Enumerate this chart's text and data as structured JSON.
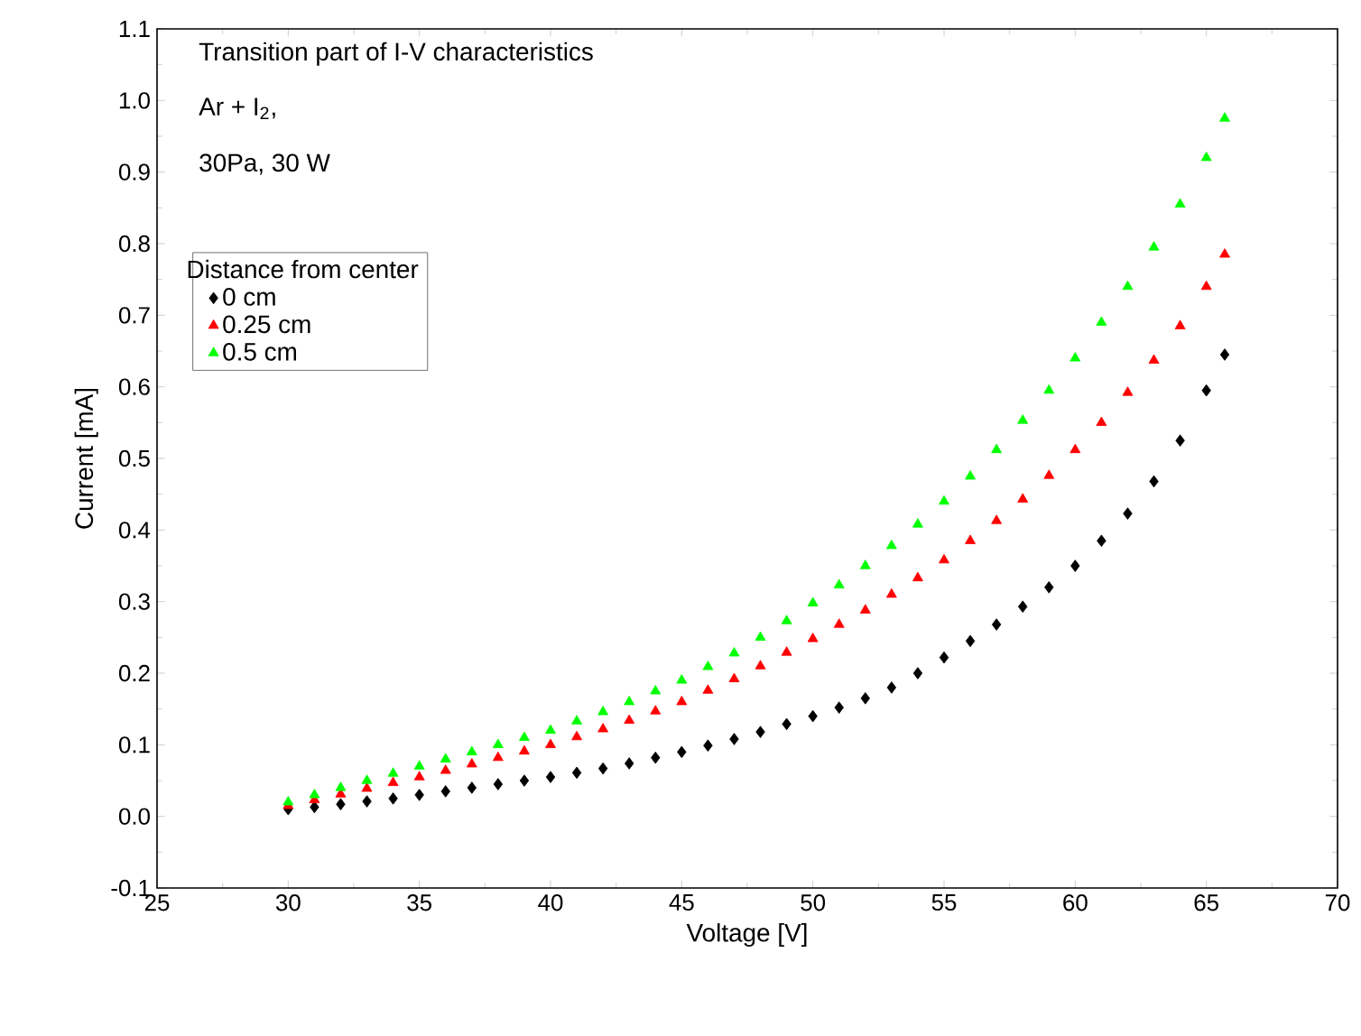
{
  "chart_data": {
    "type": "scatter",
    "xlabel": "Voltage [V]",
    "ylabel": "Current [mA]",
    "legend_title": "Distance from center",
    "annotations": [
      "Transition part of I-V characteristics",
      "Ar + I$_{2}$,",
      "30Pa, 30 W"
    ],
    "xlim": [
      25,
      70
    ],
    "xticks": [
      25,
      30,
      35,
      40,
      45,
      50,
      55,
      60,
      65,
      70
    ],
    "ylim": [
      -0.1,
      1.1
    ],
    "yticks": [
      {
        "value": -0.1,
        "label": "-0.1"
      },
      {
        "value": 0,
        "label": "0.0"
      },
      {
        "value": 0.1,
        "label": "0.1"
      },
      {
        "value": 0.2,
        "label": "0.2"
      },
      {
        "value": 0.3,
        "label": "0.3"
      },
      {
        "value": 0.4,
        "label": "0.4"
      },
      {
        "value": 0.5,
        "label": "0.5"
      },
      {
        "value": 0.6,
        "label": "0.6"
      },
      {
        "value": 0.7,
        "label": "0.7"
      },
      {
        "value": 0.8,
        "label": "0.8"
      },
      {
        "value": 0.9,
        "label": "0.9"
      },
      {
        "value": 1.0,
        "label": "1.0"
      },
      {
        "value": 1.1,
        "label": "1.1"
      }
    ],
    "x": [
      30,
      31,
      32,
      33,
      34,
      35,
      36,
      37,
      38,
      39,
      40,
      41,
      42,
      43,
      44,
      45,
      46,
      47,
      48,
      49,
      50,
      51,
      52,
      53,
      54,
      55,
      56,
      57,
      58,
      59,
      60,
      61,
      62,
      63,
      64,
      65,
      65.7
    ],
    "legend": "top left",
    "grid": false,
    "series": [
      {
        "name": "0 cm",
        "color": "#000000",
        "marker": "diamond",
        "values": [
          0.01,
          0.013,
          0.017,
          0.021,
          0.025,
          0.03,
          0.035,
          0.04,
          0.045,
          0.05,
          0.055,
          0.061,
          0.067,
          0.074,
          0.082,
          0.09,
          0.099,
          0.108,
          0.118,
          0.129,
          0.14,
          0.152,
          0.165,
          0.18,
          0.2,
          0.222,
          0.245,
          0.268,
          0.293,
          0.32,
          0.35,
          0.385,
          0.423,
          0.468,
          0.525,
          0.595,
          0.645
        ]
      },
      {
        "name": "0.25 cm",
        "color": "#ff0000",
        "marker": "triangle",
        "values": [
          0.015,
          0.023,
          0.031,
          0.039,
          0.047,
          0.055,
          0.064,
          0.073,
          0.082,
          0.091,
          0.1,
          0.111,
          0.122,
          0.134,
          0.147,
          0.16,
          0.176,
          0.192,
          0.21,
          0.229,
          0.248,
          0.268,
          0.288,
          0.31,
          0.333,
          0.358,
          0.385,
          0.413,
          0.443,
          0.476,
          0.512,
          0.55,
          0.592,
          0.637,
          0.685,
          0.74,
          0.785
        ]
      },
      {
        "name": "0.5 cm",
        "color": "#00ff00",
        "marker": "triangle",
        "values": [
          0.02,
          0.03,
          0.04,
          0.05,
          0.06,
          0.07,
          0.08,
          0.09,
          0.1,
          0.11,
          0.12,
          0.133,
          0.146,
          0.16,
          0.175,
          0.19,
          0.209,
          0.228,
          0.25,
          0.273,
          0.298,
          0.323,
          0.35,
          0.378,
          0.408,
          0.44,
          0.475,
          0.512,
          0.553,
          0.595,
          0.64,
          0.69,
          0.74,
          0.795,
          0.855,
          0.92,
          0.975
        ]
      }
    ]
  }
}
